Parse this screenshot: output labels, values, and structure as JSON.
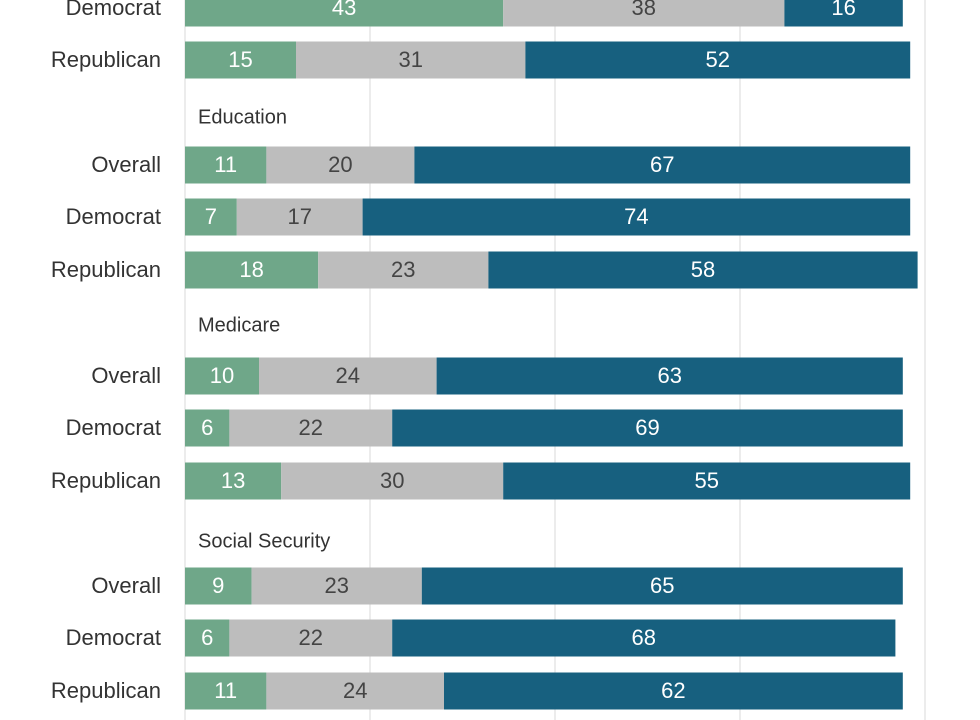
{
  "chart_data": {
    "type": "bar",
    "orientation": "horizontal-stacked",
    "xlim": [
      0,
      100
    ],
    "grid": true,
    "segment_colors": [
      "#6fa789",
      "#bdbdbd",
      "#17607f"
    ],
    "segment_text_colors": [
      "#ffffff",
      "#444444",
      "#ffffff"
    ],
    "groups": [
      {
        "label": "",
        "rows": [
          {
            "label": "Democrat",
            "values": [
              43,
              38,
              16
            ]
          },
          {
            "label": "Republican",
            "values": [
              15,
              31,
              52
            ]
          }
        ]
      },
      {
        "label": "Education",
        "rows": [
          {
            "label": "Overall",
            "values": [
              11,
              20,
              67
            ]
          },
          {
            "label": "Democrat",
            "values": [
              7,
              17,
              74
            ]
          },
          {
            "label": "Republican",
            "values": [
              18,
              23,
              58
            ]
          }
        ]
      },
      {
        "label": "Medicare",
        "rows": [
          {
            "label": "Overall",
            "values": [
              10,
              24,
              63
            ]
          },
          {
            "label": "Democrat",
            "values": [
              6,
              22,
              69
            ]
          },
          {
            "label": "Republican",
            "values": [
              13,
              30,
              55
            ]
          }
        ]
      },
      {
        "label": "Social Security",
        "rows": [
          {
            "label": "Overall",
            "values": [
              9,
              23,
              65
            ]
          },
          {
            "label": "Democrat",
            "values": [
              6,
              22,
              68
            ]
          },
          {
            "label": "Republican",
            "values": [
              11,
              24,
              62
            ]
          }
        ]
      }
    ]
  }
}
